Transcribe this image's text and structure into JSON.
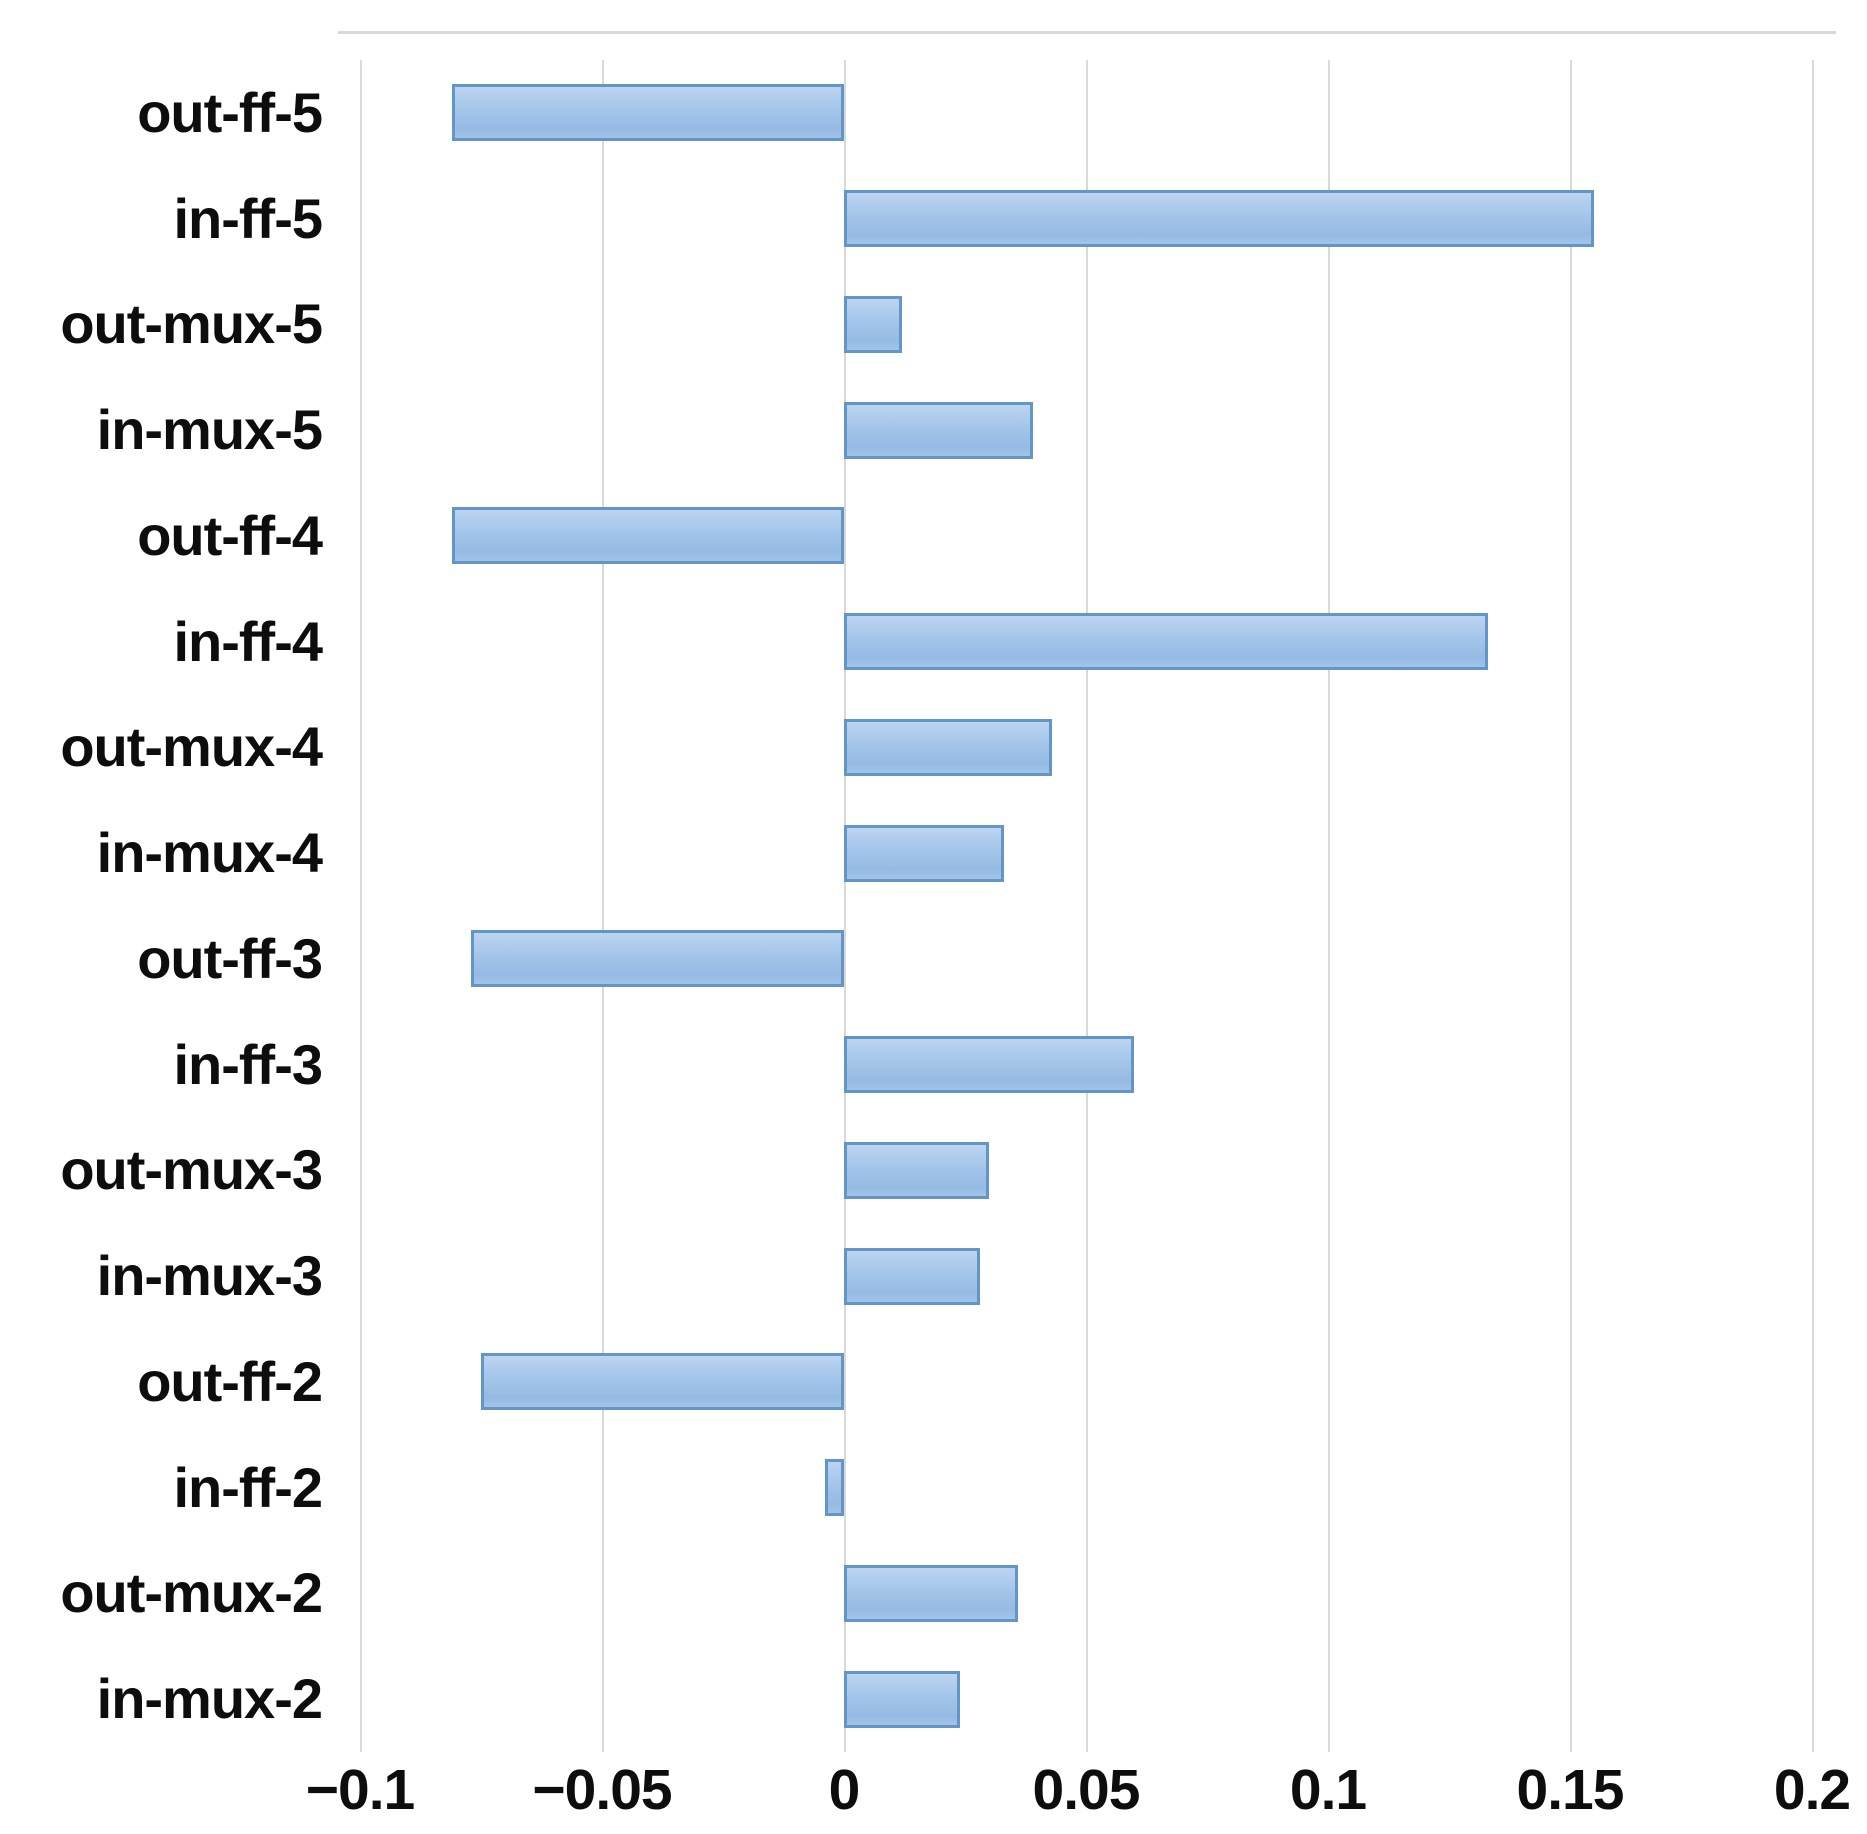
{
  "chart_data": {
    "type": "bar",
    "orientation": "horizontal",
    "title": "",
    "xlabel": "",
    "ylabel": "",
    "categories": [
      "out-ff-5",
      "in-ff-5",
      "out-mux-5",
      "in-mux-5",
      "out-ff-4",
      "in-ff-4",
      "out-mux-4",
      "in-mux-4",
      "out-ff-3",
      "in-ff-3",
      "out-mux-3",
      "in-mux-3",
      "out-ff-2",
      "in-ff-2",
      "out-mux-2",
      "in-mux-2"
    ],
    "values": [
      -0.081,
      0.155,
      0.012,
      0.039,
      -0.081,
      0.133,
      0.043,
      0.033,
      -0.077,
      0.06,
      0.03,
      0.028,
      -0.075,
      -0.004,
      0.036,
      0.024
    ],
    "xlim": [
      -0.1,
      0.2
    ],
    "xticks": [
      -0.1,
      -0.05,
      0,
      0.05,
      0.1,
      0.15,
      0.2
    ],
    "xtick_labels": [
      "−0.1",
      "−0.05",
      "0",
      "0.05",
      "0.1",
      "0.15",
      "0.2"
    ],
    "grid": "vertical-only",
    "legend": "none",
    "colors": {
      "bar_fill": "#a3c4e8",
      "bar_border": "#6495c7",
      "gridline": "#d9d9d9",
      "text": "#0d0d0d",
      "background": "#ffffff"
    }
  }
}
